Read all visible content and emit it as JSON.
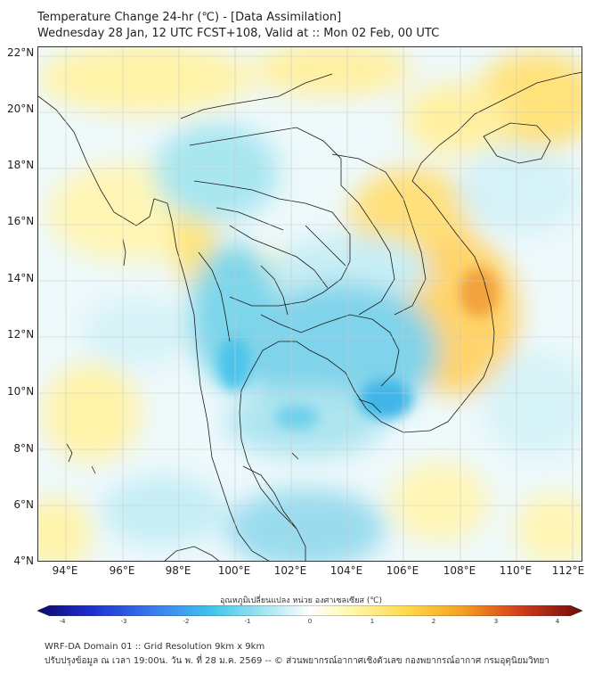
{
  "title": {
    "line1": "Temperature Change 24-hr (℃) - [Data Assimilation]",
    "line2": "Wednesday 28 Jan, 12 UTC FCST+108, Valid at :: Mon 02 Feb, 00 UTC"
  },
  "axes": {
    "lat_labels": [
      "22°N",
      "20°N",
      "18°N",
      "16°N",
      "14°N",
      "12°N",
      "10°N",
      "8°N",
      "6°N",
      "4°N"
    ],
    "lon_labels": [
      "94°E",
      "96°E",
      "98°E",
      "100°E",
      "102°E",
      "104°E",
      "106°E",
      "108°E",
      "110°E",
      "112°E"
    ]
  },
  "colorbar": {
    "label": "อุณหภูมิเปลี่ยนแปลง หน่วย องศาเซลเซียส (℃)",
    "ticks": [
      "-4",
      "-3",
      "-2",
      "-1",
      "0",
      "1",
      "2",
      "3",
      "4"
    ],
    "min": -4,
    "max": 4
  },
  "footer": {
    "line1": "WRF-DA Domain 01 :: Grid Resolution 9km x 9km",
    "line2": "ปรับปรุงข้อมูล ณ เวลา 19:00น. วัน พ. ที่ 28 ม.ค. 2569 -- © ส่วนพยากรณ์อากาศเชิงตัวเลข กองพยากรณ์อากาศ กรมอุตุนิยมวิทยา"
  }
}
